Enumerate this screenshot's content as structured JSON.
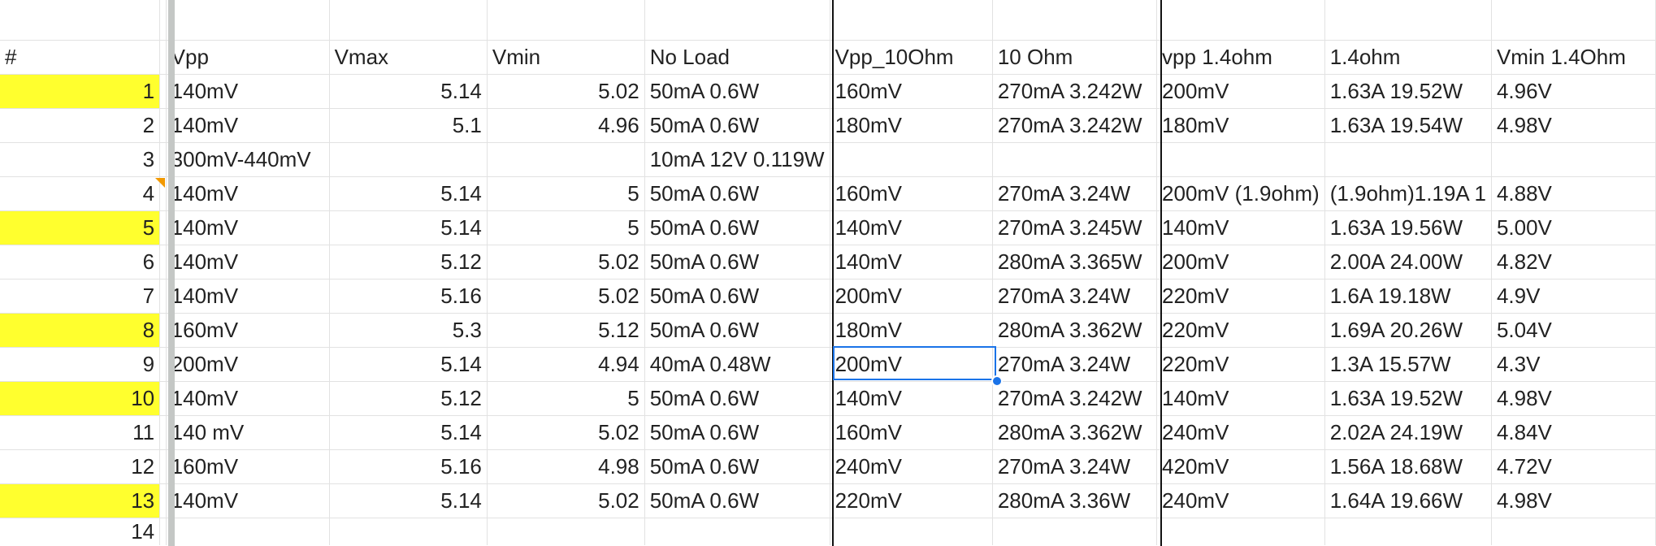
{
  "header_row": [
    "#",
    "Vpp",
    "Vmax",
    "Vmin",
    "No Load",
    "Vpp_10Ohm",
    "10 Ohm",
    "vpp 1.4ohm",
    "1.4ohm",
    "Vmin 1.4Ohm"
  ],
  "rows": [
    {
      "n": "1",
      "hl": true,
      "vpp": "140mV",
      "vmax": "5.14",
      "vmin": "5.02",
      "noload": "50mA 0.6W",
      "vpp10": "160mV",
      "ohm10": "270mA 3.242W",
      "vpp14": "200mV",
      "ohm14": "1.63A 19.52W",
      "vmin14": "4.96V"
    },
    {
      "n": "2",
      "hl": false,
      "vpp": "140mV",
      "vmax": "5.1",
      "vmin": "4.96",
      "noload": "50mA 0.6W",
      "vpp10": "180mV",
      "ohm10": "270mA 3.242W",
      "vpp14": "180mV",
      "ohm14": "1.63A 19.54W",
      "vmin14": "4.98V"
    },
    {
      "n": "3",
      "hl": false,
      "vpp": "300mV-440mV",
      "vmax": "",
      "vmin": "",
      "noload": "10mA 12V 0.119W",
      "vpp10": "",
      "ohm10": "",
      "vpp14": "",
      "ohm14": "",
      "vmin14": ""
    },
    {
      "n": "4",
      "hl": false,
      "vpp": "140mV",
      "vmax": "5.14",
      "vmin": "5",
      "noload": "50mA 0.6W",
      "vpp10": "160mV",
      "ohm10": "270mA 3.24W",
      "vpp14": "200mV (1.9ohm)",
      "ohm14": "(1.9ohm)1.19A 1",
      "vmin14": "4.88V"
    },
    {
      "n": "5",
      "hl": true,
      "vpp": "140mV",
      "vmax": "5.14",
      "vmin": "5",
      "noload": "50mA 0.6W",
      "vpp10": "140mV",
      "ohm10": "270mA 3.245W",
      "vpp14": "140mV",
      "ohm14": "1.63A 19.56W",
      "vmin14": "5.00V"
    },
    {
      "n": "6",
      "hl": false,
      "vpp": "140mV",
      "vmax": "5.12",
      "vmin": "5.02",
      "noload": "50mA 0.6W",
      "vpp10": "140mV",
      "ohm10": "280mA 3.365W",
      "vpp14": "200mV",
      "ohm14": "2.00A 24.00W",
      "vmin14": "4.82V"
    },
    {
      "n": "7",
      "hl": false,
      "vpp": "140mV",
      "vmax": "5.16",
      "vmin": "5.02",
      "noload": "50mA 0.6W",
      "vpp10": "200mV",
      "ohm10": "270mA 3.24W",
      "vpp14": "220mV",
      "ohm14": "1.6A 19.18W",
      "vmin14": "4.9V"
    },
    {
      "n": "8",
      "hl": true,
      "vpp": "160mV",
      "vmax": "5.3",
      "vmin": "5.12",
      "noload": "50mA 0.6W",
      "vpp10": "180mV",
      "ohm10": "280mA 3.362W",
      "vpp14": "220mV",
      "ohm14": "1.69A 20.26W",
      "vmin14": "5.04V"
    },
    {
      "n": "9",
      "hl": false,
      "vpp": "200mV",
      "vmax": "5.14",
      "vmin": "4.94",
      "noload": "40mA 0.48W",
      "vpp10": "200mV",
      "ohm10": "270mA 3.24W",
      "vpp14": "220mV",
      "ohm14": "1.3A 15.57W",
      "vmin14": "4.3V"
    },
    {
      "n": "10",
      "hl": true,
      "vpp": "140mV",
      "vmax": "5.12",
      "vmin": "5",
      "noload": "50mA 0.6W",
      "vpp10": "140mV",
      "ohm10": "270mA 3.242W",
      "vpp14": "140mV",
      "ohm14": "1.63A 19.52W",
      "vmin14": "4.98V"
    },
    {
      "n": "11",
      "hl": false,
      "vpp": "140 mV",
      "vmax": "5.14",
      "vmin": "5.02",
      "noload": "50mA 0.6W",
      "vpp10": "160mV",
      "ohm10": "280mA 3.362W",
      "vpp14": "240mV",
      "ohm14": "2.02A 24.19W",
      "vmin14": "4.84V"
    },
    {
      "n": "12",
      "hl": false,
      "vpp": "160mV",
      "vmax": "5.16",
      "vmin": "4.98",
      "noload": "50mA 0.6W",
      "vpp10": "240mV",
      "ohm10": "270mA 3.24W",
      "vpp14": "420mV",
      "ohm14": "1.56A 18.68W",
      "vmin14": "4.72V"
    },
    {
      "n": "13",
      "hl": true,
      "vpp": "140mV",
      "vmax": "5.14",
      "vmin": "5.02",
      "noload": "50mA 0.6W",
      "vpp10": "220mV",
      "ohm10": "280mA 3.36W",
      "vpp14": "240mV",
      "ohm14": "1.64A 19.66W",
      "vmin14": "4.98V"
    }
  ],
  "last_row_number": "14",
  "colors": {
    "highlight": "#ffff2e",
    "selection": "#1a73e8",
    "note_marker": "#f29900"
  }
}
